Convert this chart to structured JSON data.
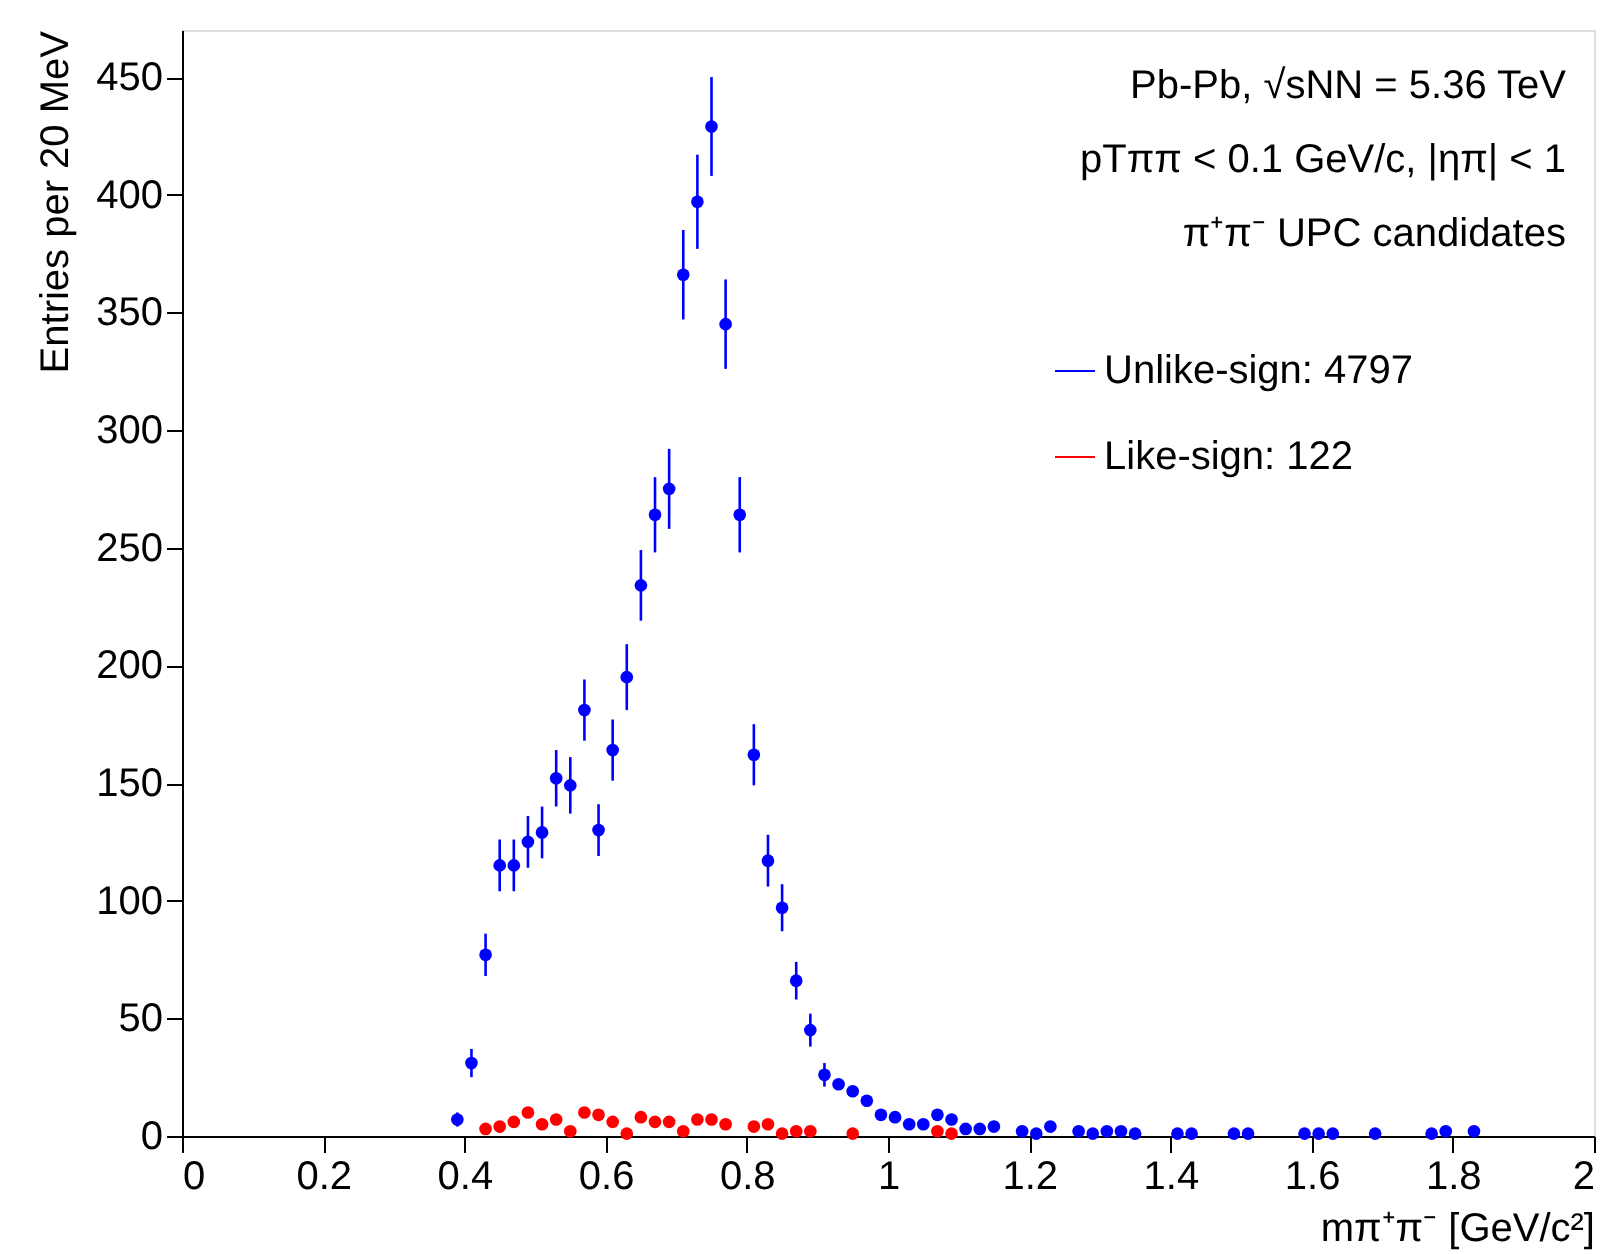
{
  "chart_data": {
    "type": "scatter",
    "xlabel": "mπ⁺π⁻ [GeV/c²]",
    "ylabel": "Entries per 20 MeV",
    "annotations": [
      "Pb-Pb, √sNN = 5.36 TeV",
      "pTππ < 0.1 GeV/c, |ηπ| < 1",
      "π⁺π⁻ UPC candidates"
    ],
    "xlim": [
      0,
      2
    ],
    "ylim": [
      0,
      470
    ],
    "xticks": [
      0,
      0.2,
      0.4,
      0.6,
      0.8,
      1,
      1.2,
      1.4,
      1.6,
      1.8,
      2
    ],
    "yticks": [
      0,
      50,
      100,
      150,
      200,
      250,
      300,
      350,
      400,
      450
    ],
    "grid": false,
    "legend": "top right",
    "marker": "circle",
    "series": [
      {
        "name": "Unlike-sign: 4797",
        "color": "#0000ff",
        "x": [
          0.39,
          0.41,
          0.43,
          0.45,
          0.47,
          0.49,
          0.51,
          0.53,
          0.55,
          0.57,
          0.59,
          0.61,
          0.63,
          0.65,
          0.67,
          0.69,
          0.71,
          0.73,
          0.75,
          0.77,
          0.79,
          0.81,
          0.83,
          0.85,
          0.87,
          0.89,
          0.91,
          0.93,
          0.95,
          0.97,
          0.99,
          1.01,
          1.03,
          1.05,
          1.07,
          1.09,
          1.11,
          1.13,
          1.15,
          1.19,
          1.21,
          1.23,
          1.27,
          1.29,
          1.31,
          1.33,
          1.35,
          1.41,
          1.43,
          1.49,
          1.51,
          1.59,
          1.61,
          1.63,
          1.69,
          1.77,
          1.79,
          1.83
        ],
        "values": [
          7,
          31,
          77,
          115,
          115,
          125,
          129,
          152,
          149,
          181,
          130,
          164,
          195,
          234,
          264,
          275,
          366,
          397,
          429,
          345,
          264,
          162,
          117,
          97,
          66,
          45,
          26,
          22,
          19,
          15,
          9,
          8,
          5,
          5,
          9,
          7,
          3,
          3,
          4,
          2,
          1,
          4,
          2,
          1,
          2,
          2,
          1,
          1,
          1,
          1,
          1,
          1,
          1,
          1,
          1,
          1,
          2,
          2
        ],
        "errors": [
          3,
          6,
          9,
          11,
          11,
          11,
          11,
          12,
          12,
          13,
          11,
          13,
          14,
          15,
          16,
          17,
          19,
          20,
          21,
          19,
          16,
          13,
          11,
          10,
          8,
          7,
          5,
          null,
          null,
          null,
          null,
          null,
          null,
          null,
          null,
          null,
          null,
          null,
          null,
          null,
          null,
          null,
          null,
          null,
          null,
          null,
          null,
          null,
          null,
          null,
          null,
          null,
          null,
          null,
          null,
          null,
          null,
          null
        ]
      },
      {
        "name": "Like-sign: 122",
        "color": "#ff0000",
        "x": [
          0.43,
          0.45,
          0.47,
          0.49,
          0.51,
          0.53,
          0.55,
          0.57,
          0.59,
          0.61,
          0.63,
          0.65,
          0.67,
          0.69,
          0.71,
          0.73,
          0.75,
          0.77,
          0.81,
          0.83,
          0.85,
          0.87,
          0.89,
          0.95,
          1.07,
          1.09
        ],
        "values": [
          3,
          4,
          6,
          10,
          5,
          7,
          2,
          10,
          9,
          6,
          1,
          8,
          6,
          6,
          2,
          7,
          7,
          5,
          4,
          5,
          1,
          2,
          2,
          1,
          2,
          1
        ]
      }
    ]
  }
}
